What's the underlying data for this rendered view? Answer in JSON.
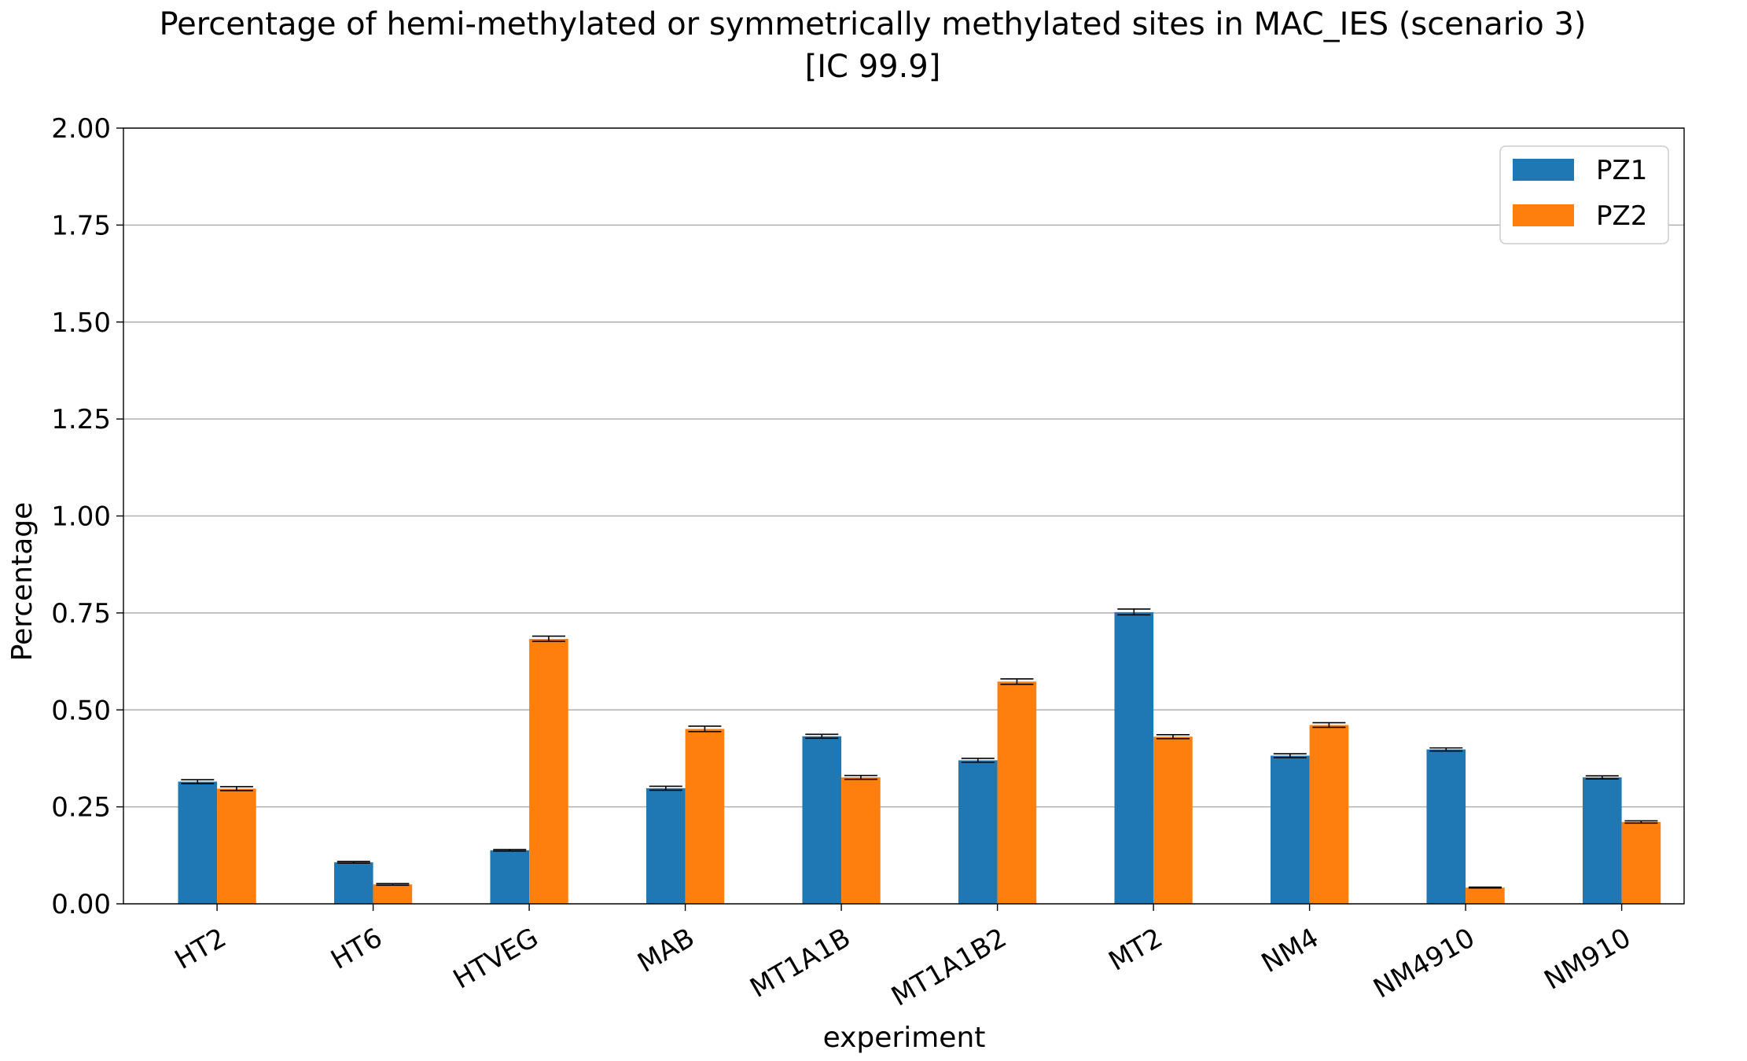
{
  "chart_data": {
    "type": "bar",
    "title_line1": "Percentage of hemi-methylated or symmetrically methylated sites in MAC_IES (scenario 3)",
    "title_line2": "[IC 99.9]",
    "xlabel": "experiment",
    "ylabel": "Percentage",
    "ylim": [
      0,
      2.0
    ],
    "yticks": [
      "0.00",
      "0.25",
      "0.50",
      "0.75",
      "1.00",
      "1.25",
      "1.50",
      "1.75",
      "2.00"
    ],
    "grid": "y",
    "legend_position": "top-right",
    "categories": [
      "HT2",
      "HT6",
      "HTVEG",
      "MAB",
      "MT1A1B",
      "MT1A1B2",
      "MT2",
      "NM4",
      "NM4910",
      "NM910"
    ],
    "series": [
      {
        "name": "PZ1",
        "color": "#1f77b4",
        "values": [
          0.315,
          0.107,
          0.138,
          0.298,
          0.432,
          0.37,
          0.752,
          0.382,
          0.398,
          0.326
        ],
        "err_low": [
          0.31,
          0.105,
          0.136,
          0.293,
          0.427,
          0.365,
          0.745,
          0.377,
          0.394,
          0.322
        ],
        "err_high": [
          0.32,
          0.109,
          0.14,
          0.303,
          0.437,
          0.375,
          0.76,
          0.387,
          0.402,
          0.33
        ]
      },
      {
        "name": "PZ2",
        "color": "#ff7f0e",
        "values": [
          0.297,
          0.05,
          0.683,
          0.451,
          0.326,
          0.573,
          0.431,
          0.461,
          0.042,
          0.211
        ],
        "err_low": [
          0.292,
          0.048,
          0.677,
          0.444,
          0.321,
          0.566,
          0.426,
          0.455,
          0.041,
          0.208
        ],
        "err_high": [
          0.302,
          0.052,
          0.69,
          0.458,
          0.331,
          0.58,
          0.436,
          0.467,
          0.043,
          0.214
        ]
      }
    ]
  }
}
